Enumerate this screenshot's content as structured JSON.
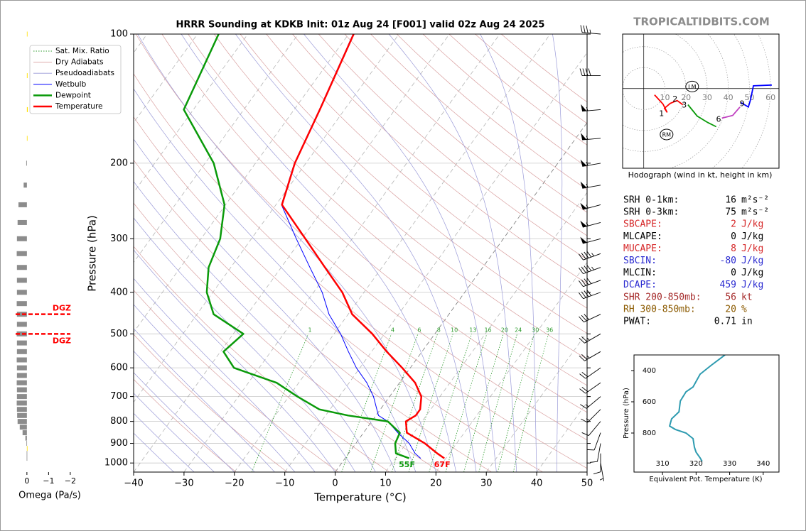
{
  "watermark": "TROPICALTIDBITS.COM",
  "chart_data": [
    {
      "type": "skewt",
      "title": "HRRR Sounding at KDKB Init: 01z Aug 24 [F001] valid 02z Aug 24 2025",
      "x_label": "Temperature (°C)",
      "y_label": "Pressure (hPa)",
      "xlim": [
        -40,
        50
      ],
      "ylim": [
        1050,
        100
      ],
      "ylog": true,
      "grid": true,
      "xticks": [
        {
          "value": -40,
          "label": "−40"
        },
        {
          "value": -30,
          "label": "−30"
        },
        {
          "value": -20,
          "label": "−20"
        },
        {
          "value": -10,
          "label": "−10"
        },
        0,
        10,
        20,
        30,
        40,
        50
      ],
      "yticks": [
        100,
        200,
        300,
        400,
        500,
        600,
        700,
        800,
        900,
        1000
      ],
      "reference_lines": [
        {
          "name": "Sat. Mix. Ratio",
          "color": "#2e9b2e"
        },
        {
          "name": "Dry Adiabats",
          "color": "#d9a0a0"
        },
        {
          "name": "Pseudoadiabats",
          "color": "#9a9ad8"
        }
      ],
      "mixing_ratios": [
        1,
        4,
        6,
        8,
        10,
        13,
        16,
        20,
        24,
        30,
        36
      ],
      "pressure": [
        975,
        950,
        900,
        850,
        800,
        775,
        750,
        700,
        650,
        600,
        550,
        500,
        450,
        400,
        350,
        300,
        250,
        200,
        150,
        100
      ],
      "series": [
        {
          "name": "Wetbulb",
          "color": "#0000ff",
          "values": [
            15,
            13.2,
            10.6,
            6.8,
            3.2,
            0.5,
            -0.7,
            -3.2,
            -6.5,
            -10.7,
            -14.6,
            -18.7,
            -23.8,
            -28.3,
            -34.3,
            -41.1,
            -48.9,
            -52.3,
            -55,
            -59.1
          ]
        },
        {
          "name": "Dewpoint",
          "color": "#0a9a0a",
          "surface_label": "55F",
          "values": [
            12.7,
            9.4,
            7.8,
            7.2,
            3.2,
            -5.5,
            -12.1,
            -18.3,
            -24.4,
            -35,
            -39.4,
            -38,
            -46.7,
            -51.2,
            -54.4,
            -56.2,
            -60.2,
            -68.3,
            -81.9,
            -85.8
          ]
        },
        {
          "name": "Temperature",
          "color": "#ff0000",
          "surface_label": "67F",
          "values": [
            19.7,
            17.6,
            13.7,
            8.6,
            6.8,
            7.9,
            7.9,
            6.3,
            3.1,
            -1.6,
            -7,
            -12.4,
            -19.2,
            -24.3,
            -31.3,
            -39.3,
            -48.8,
            -52.2,
            -54.9,
            -59
          ]
        }
      ],
      "winds": {
        "pressure": [
          100,
          125,
          150,
          175,
          200,
          225,
          250,
          275,
          300,
          325,
          350,
          375,
          400,
          450,
          500,
          550,
          600,
          650,
          700,
          750,
          800,
          850,
          900,
          950,
          1000
        ],
        "direction": [
          275,
          270,
          265,
          265,
          260,
          260,
          255,
          255,
          255,
          250,
          250,
          250,
          250,
          245,
          240,
          240,
          235,
          235,
          230,
          225,
          220,
          200,
          190,
          180,
          170
        ],
        "speed": [
          35,
          40,
          55,
          55,
          55,
          55,
          55,
          55,
          50,
          45,
          45,
          40,
          40,
          30,
          25,
          25,
          20,
          20,
          15,
          15,
          10,
          10,
          10,
          10,
          5
        ]
      }
    },
    {
      "type": "bar",
      "orientation": "horizontal",
      "x_label": "Omega (Pa/s)",
      "xlim": [
        0.52,
        -2.3
      ],
      "xticks": [
        0,
        {
          "value": -1,
          "label": "−1"
        },
        {
          "value": -2,
          "label": "−2"
        }
      ],
      "positive_color": "#8c8c8c",
      "negative_color": "#ffe000",
      "pressure": [
        100,
        125,
        150,
        175,
        200,
        225,
        250,
        275,
        300,
        325,
        350,
        375,
        400,
        425,
        450,
        475,
        500,
        525,
        550,
        575,
        600,
        625,
        650,
        675,
        700,
        725,
        750,
        775,
        800,
        825,
        850,
        875,
        900,
        925,
        950,
        975
      ],
      "values": [
        -0.02,
        -0.03,
        -0.04,
        -0.01,
        0.03,
        0.15,
        0.39,
        0.43,
        0.46,
        0.47,
        0.46,
        0.46,
        0.46,
        0.47,
        0.46,
        0.46,
        0.47,
        0.46,
        0.46,
        0.47,
        0.46,
        0.46,
        0.47,
        0.46,
        0.46,
        0.47,
        0.46,
        0.45,
        0.43,
        0.33,
        0.2,
        0.07,
        0.02,
        -0.02,
        0.01,
        0.01
      ],
      "dgz": [
        {
          "pressure": 450,
          "label": "DGZ"
        },
        {
          "pressure": 500,
          "label": "DGZ"
        }
      ]
    },
    {
      "type": "hodograph",
      "caption": "Hodograph (wind in kt, height in km)",
      "xlim": [
        -10,
        64
      ],
      "ylim": [
        -38,
        26
      ],
      "rings": [
        10,
        20,
        30,
        40,
        50,
        60
      ],
      "segments": [
        {
          "color": "#ff0000",
          "u": [
            5.1,
            9.1,
            11.1,
            9.8,
            12.5,
            15.8,
            18.5
          ],
          "v": [
            -3.0,
            -7.4,
            -11.4,
            -9.4,
            -7.1,
            -5.7,
            -7.7
          ]
        },
        {
          "color": "#0a9a0a",
          "u": [
            20.9,
            25.3,
            30.3,
            34.3
          ],
          "v": [
            -7.7,
            -13.1,
            -16.2,
            -18.2
          ]
        },
        {
          "color": "#c040c0",
          "u": [
            37.0,
            42.1,
            45.5
          ],
          "v": [
            -14.1,
            -12.8,
            -8.8
          ]
        },
        {
          "color": "#0000ff",
          "u": [
            46.1,
            49.5,
            50.5,
            51.9,
            60.6
          ],
          "v": [
            -6.7,
            -8.8,
            -5.4,
            1.3,
            1.7
          ]
        }
      ],
      "heights": {
        "labels": [
          1,
          2,
          3,
          6,
          9
        ],
        "u": [
          8.4,
          14.8,
          19.2,
          35.4,
          46.5
        ],
        "v": [
          -12.1,
          -5.1,
          -8.1,
          -14.8,
          -7.4
        ]
      },
      "storm_motion": [
        {
          "label": "LM",
          "u": 22.9,
          "v": 1.0
        },
        {
          "label": "RM",
          "u": 10.8,
          "v": -21.9
        }
      ]
    },
    {
      "type": "line",
      "x_label": "Equivalent Pot. Temperature (K)",
      "y_label": "Pressure (hPa)",
      "xlim": [
        301.5,
        344.7
      ],
      "ylim": [
        1050,
        300
      ],
      "xticks": [
        310,
        320,
        330,
        340
      ],
      "yticks": [
        400,
        600,
        800
      ],
      "color": "#2e9bb0",
      "pressure": [
        300,
        368,
        423,
        505,
        536,
        595,
        664,
        709,
        755,
        777,
        800,
        836,
        891,
        923,
        959,
        982
      ],
      "values": [
        328.6,
        324.4,
        321.2,
        319.1,
        317.0,
        315.3,
        314.9,
        312.7,
        312.1,
        313.8,
        317.0,
        319.1,
        319.5,
        320.0,
        321.2,
        321.8
      ]
    }
  ],
  "stats": [
    {
      "label": "SRH 0-1km:",
      "value": 16,
      "unit": "m²s⁻²",
      "color": "#000000"
    },
    {
      "label": "SRH 0-3km:",
      "value": 75,
      "unit": "m²s⁻²",
      "color": "#000000"
    },
    {
      "label": "SBCAPE:",
      "value": 2,
      "unit": "J/kg",
      "color": "#d62728"
    },
    {
      "label": "MLCAPE:",
      "value": 0,
      "unit": "J/kg",
      "color": "#000000"
    },
    {
      "label": "MUCAPE:",
      "value": 8,
      "unit": "J/kg",
      "color": "#d62728"
    },
    {
      "label": "SBCIN:",
      "value": -80,
      "unit": "J/kg",
      "color": "#2a2ad0"
    },
    {
      "label": "MLCIN:",
      "value": 0,
      "unit": "J/kg",
      "color": "#000000"
    },
    {
      "label": "DCAPE:",
      "value": 459,
      "unit": "J/kg",
      "color": "#2a2ad0"
    },
    {
      "label": "SHR 200-850mb:",
      "value": 56,
      "unit": "kt",
      "color": "#a52a2a"
    },
    {
      "label": "RH 300-850mb:",
      "value": 20,
      "unit": "%",
      "color": "#8b5a00"
    },
    {
      "label": "PWAT:",
      "value": 0.71,
      "unit": "in",
      "color": "#000000"
    }
  ]
}
